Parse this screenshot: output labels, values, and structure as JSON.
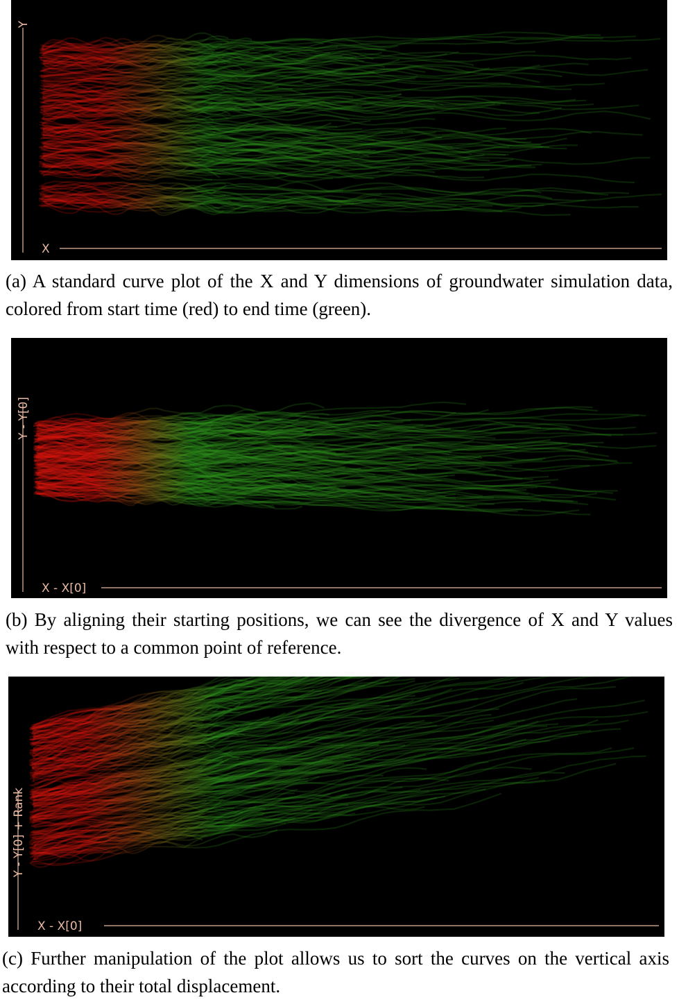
{
  "panels": [
    {
      "y_label": "Y",
      "x_label": "X",
      "caption": "(a) A standard curve plot of the X and Y dimensions of groundwater simulation data, colored from start time (red) to end time (green)."
    },
    {
      "y_label": "Y - Y[0]",
      "x_label": "X - X[0]",
      "caption": "(b) By aligning their starting positions, we can see the divergence of X and Y values with respect to a common point of reference."
    },
    {
      "y_label": "Y - Y[0] + Rank",
      "x_label": "X - X[0]",
      "caption": "(c) Further manipulation of the plot allows us to sort the curves on the vertical axis according to their total displacement."
    }
  ]
}
